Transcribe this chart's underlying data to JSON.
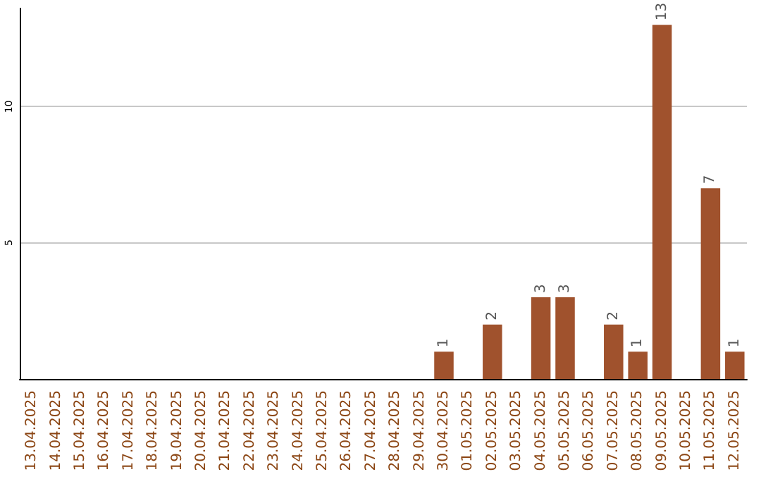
{
  "chart_data": {
    "type": "bar",
    "categories": [
      "13.04.2025",
      "14.04.2025",
      "15.04.2025",
      "16.04.2025",
      "17.04.2025",
      "18.04.2025",
      "19.04.2025",
      "20.04.2025",
      "21.04.2025",
      "22.04.2025",
      "23.04.2025",
      "24.04.2025",
      "25.04.2025",
      "26.04.2025",
      "27.04.2025",
      "28.04.2025",
      "29.04.2025",
      "30.04.2025",
      "01.05.2025",
      "02.05.2025",
      "03.05.2025",
      "04.05.2025",
      "05.05.2025",
      "06.05.2025",
      "07.05.2025",
      "08.05.2025",
      "09.05.2025",
      "10.05.2025",
      "11.05.2025",
      "12.05.2025"
    ],
    "values": [
      0,
      0,
      0,
      0,
      0,
      0,
      0,
      0,
      0,
      0,
      0,
      0,
      0,
      0,
      0,
      0,
      0,
      1,
      0,
      2,
      0,
      3,
      3,
      0,
      2,
      1,
      13,
      0,
      7,
      1
    ],
    "value_labels": [
      null,
      null,
      null,
      null,
      null,
      null,
      null,
      null,
      null,
      null,
      null,
      null,
      null,
      null,
      null,
      null,
      null,
      "1",
      null,
      "2",
      null,
      "3",
      "3",
      null,
      "2",
      "1",
      "13",
      null,
      "7",
      "1"
    ],
    "color": "#a0522d",
    "ylim": [
      0,
      13.6
    ],
    "yticks": [
      5,
      10
    ],
    "grid": "y"
  }
}
